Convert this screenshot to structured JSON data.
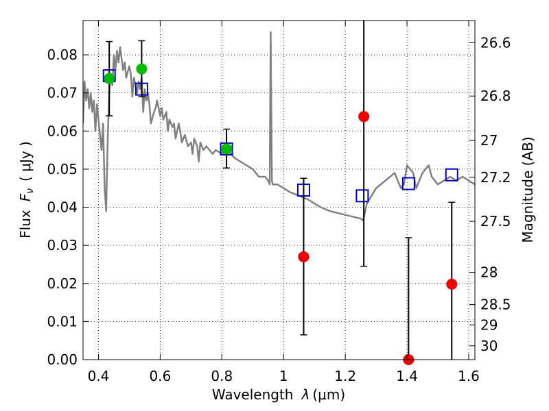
{
  "chart_data": {
    "type": "scatter",
    "xlabel_text": "Wavelength",
    "xlabel_symbol": "λ",
    "xlabel_unit": "(μm)",
    "ylabel_text": "Flux",
    "ylabel_symbol": "F",
    "ylabel_subscript": "ν",
    "ylabel_unit": "( μJy )",
    "y2label": "Magnitude (AB)",
    "xlim": [
      0.35,
      1.62
    ],
    "ylim": [
      0.0,
      0.089
    ],
    "grid": true,
    "x_ticks": [
      {
        "value": 0.4,
        "label": "0.4"
      },
      {
        "value": 0.6,
        "label": "0.6"
      },
      {
        "value": 0.8,
        "label": "0.8"
      },
      {
        "value": 1.0,
        "label": "1"
      },
      {
        "value": 1.2,
        "label": "1.2"
      },
      {
        "value": 1.4,
        "label": "1.4"
      },
      {
        "value": 1.6,
        "label": "1.6"
      }
    ],
    "y_ticks": [
      {
        "value": 0.0,
        "label": "0.00"
      },
      {
        "value": 0.01,
        "label": "0.01"
      },
      {
        "value": 0.02,
        "label": "0.02"
      },
      {
        "value": 0.03,
        "label": "0.03"
      },
      {
        "value": 0.04,
        "label": "0.04"
      },
      {
        "value": 0.05,
        "label": "0.05"
      },
      {
        "value": 0.06,
        "label": "0.06"
      },
      {
        "value": 0.07,
        "label": "0.07"
      },
      {
        "value": 0.08,
        "label": "0.08"
      }
    ],
    "y2_ticks": [
      {
        "value": 26.6,
        "label": "26.6"
      },
      {
        "value": 26.8,
        "label": "26.8"
      },
      {
        "value": 27.0,
        "label": "27"
      },
      {
        "value": 27.2,
        "label": "27.2"
      },
      {
        "value": 27.5,
        "label": "27.5"
      },
      {
        "value": 28.0,
        "label": "28"
      },
      {
        "value": 28.5,
        "label": "28.5"
      },
      {
        "value": 29.0,
        "label": "29"
      },
      {
        "value": 30.0,
        "label": "30"
      }
    ],
    "series": [
      {
        "kind": "line",
        "color": "#808080",
        "x": [
          0.35,
          0.355,
          0.36,
          0.365,
          0.37,
          0.375,
          0.38,
          0.385,
          0.39,
          0.395,
          0.4,
          0.405,
          0.41,
          0.415,
          0.42,
          0.425,
          0.43,
          0.435,
          0.44,
          0.445,
          0.45,
          0.455,
          0.46,
          0.465,
          0.47,
          0.475,
          0.48,
          0.485,
          0.49,
          0.5,
          0.505,
          0.51,
          0.515,
          0.52,
          0.525,
          0.53,
          0.535,
          0.54,
          0.545,
          0.55,
          0.555,
          0.56,
          0.565,
          0.57,
          0.58,
          0.585,
          0.59,
          0.6,
          0.605,
          0.61,
          0.62,
          0.625,
          0.63,
          0.64,
          0.645,
          0.65,
          0.66,
          0.665,
          0.67,
          0.68,
          0.69,
          0.7,
          0.705,
          0.71,
          0.72,
          0.725,
          0.73,
          0.74,
          0.75,
          0.76,
          0.77,
          0.78,
          0.8,
          0.82,
          0.84,
          0.86,
          0.88,
          0.9,
          0.92,
          0.94,
          0.95,
          0.955,
          0.958,
          0.962,
          0.965,
          0.97,
          0.98,
          1.0,
          1.02,
          1.05,
          1.08,
          1.1,
          1.12,
          1.15,
          1.2,
          1.25,
          1.258,
          1.27,
          1.3,
          1.33,
          1.36,
          1.38,
          1.39,
          1.4,
          1.41,
          1.42,
          1.43,
          1.45,
          1.47,
          1.48,
          1.5,
          1.52,
          1.54,
          1.56,
          1.58,
          1.6,
          1.62
        ],
        "y": [
          0.062,
          0.073,
          0.068,
          0.071,
          0.066,
          0.07,
          0.065,
          0.068,
          0.06,
          0.067,
          0.063,
          0.059,
          0.055,
          0.062,
          0.045,
          0.039,
          0.058,
          0.07,
          0.075,
          0.072,
          0.08,
          0.076,
          0.081,
          0.078,
          0.082,
          0.079,
          0.076,
          0.078,
          0.074,
          0.077,
          0.075,
          0.069,
          0.074,
          0.072,
          0.07,
          0.073,
          0.071,
          0.074,
          0.065,
          0.071,
          0.068,
          0.07,
          0.067,
          0.062,
          0.065,
          0.066,
          0.068,
          0.064,
          0.066,
          0.063,
          0.065,
          0.06,
          0.063,
          0.061,
          0.062,
          0.058,
          0.062,
          0.06,
          0.057,
          0.059,
          0.056,
          0.057,
          0.054,
          0.058,
          0.056,
          0.052,
          0.057,
          0.055,
          0.056,
          0.055,
          0.054,
          0.055,
          0.054,
          0.055,
          0.053,
          0.052,
          0.051,
          0.05,
          0.048,
          0.048,
          0.047,
          0.046,
          0.086,
          0.047,
          0.046,
          0.046,
          0.046,
          0.045,
          0.044,
          0.043,
          0.042,
          0.041,
          0.04,
          0.039,
          0.038,
          0.037,
          0.0365,
          0.041,
          0.045,
          0.047,
          0.049,
          0.045,
          0.046,
          0.051,
          0.05,
          0.049,
          0.045,
          0.049,
          0.051,
          0.048,
          0.046,
          0.047,
          0.048,
          0.047,
          0.048,
          0.047,
          0.046
        ]
      },
      {
        "kind": "open-square",
        "color": "#0000cc",
        "points": [
          {
            "x": 0.435,
            "y": 0.0745
          },
          {
            "x": 0.54,
            "y": 0.071
          },
          {
            "x": 0.815,
            "y": 0.0553
          },
          {
            "x": 1.065,
            "y": 0.0445
          },
          {
            "x": 1.255,
            "y": 0.043
          },
          {
            "x": 1.405,
            "y": 0.0462
          },
          {
            "x": 1.545,
            "y": 0.0485
          }
        ]
      },
      {
        "kind": "filled-circle",
        "color": "#00bb00",
        "points": [
          {
            "x": 0.435,
            "y": 0.0738,
            "err_lo": 0.064,
            "err_hi": 0.0835
          },
          {
            "x": 0.54,
            "y": 0.0763,
            "err_lo": 0.069,
            "err_hi": 0.0837
          },
          {
            "x": 0.815,
            "y": 0.0553,
            "err_lo": 0.0503,
            "err_hi": 0.0605
          }
        ]
      },
      {
        "kind": "filled-circle",
        "color": "#ee0000",
        "points": [
          {
            "x": 1.065,
            "y": 0.027,
            "err_lo": 0.0065,
            "err_hi": 0.0476
          },
          {
            "x": 1.26,
            "y": 0.0638,
            "err_lo": 0.0245,
            "err_hi": 0.09
          },
          {
            "x": 1.405,
            "y": 0.0,
            "err_lo": 0.0,
            "err_hi": 0.032
          },
          {
            "x": 1.545,
            "y": 0.0198,
            "err_lo": 0.0,
            "err_hi": 0.0413
          }
        ]
      }
    ]
  }
}
